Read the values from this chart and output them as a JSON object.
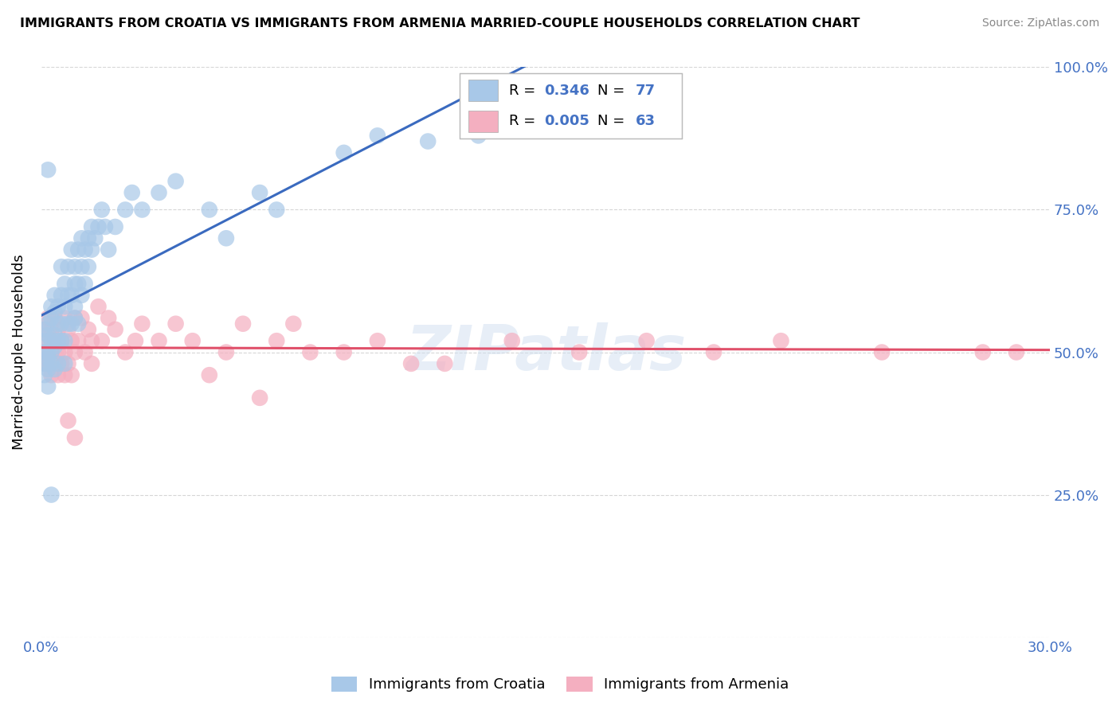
{
  "title": "IMMIGRANTS FROM CROATIA VS IMMIGRANTS FROM ARMENIA MARRIED-COUPLE HOUSEHOLDS CORRELATION CHART",
  "source": "Source: ZipAtlas.com",
  "ylabel": "Married-couple Households",
  "xlim": [
    0.0,
    0.3
  ],
  "ylim": [
    0.0,
    1.0
  ],
  "croatia_R": 0.346,
  "croatia_N": 77,
  "armenia_R": 0.005,
  "armenia_N": 63,
  "blue_scatter_color": "#a8c8e8",
  "pink_scatter_color": "#f4afc0",
  "blue_line_color": "#3a6abf",
  "pink_line_color": "#e0506a",
  "watermark": "ZIPatlas",
  "croatia_x": [
    0.001,
    0.001,
    0.001,
    0.001,
    0.001,
    0.002,
    0.002,
    0.002,
    0.002,
    0.002,
    0.002,
    0.003,
    0.003,
    0.003,
    0.003,
    0.003,
    0.004,
    0.004,
    0.004,
    0.004,
    0.004,
    0.005,
    0.005,
    0.005,
    0.005,
    0.006,
    0.006,
    0.006,
    0.006,
    0.007,
    0.007,
    0.007,
    0.007,
    0.008,
    0.008,
    0.008,
    0.009,
    0.009,
    0.009,
    0.01,
    0.01,
    0.01,
    0.01,
    0.011,
    0.011,
    0.011,
    0.012,
    0.012,
    0.012,
    0.013,
    0.013,
    0.014,
    0.014,
    0.015,
    0.015,
    0.016,
    0.017,
    0.018,
    0.019,
    0.02,
    0.022,
    0.025,
    0.027,
    0.03,
    0.035,
    0.04,
    0.05,
    0.055,
    0.065,
    0.07,
    0.09,
    0.1,
    0.115,
    0.13,
    0.15,
    0.002,
    0.003
  ],
  "croatia_y": [
    0.5,
    0.52,
    0.48,
    0.46,
    0.54,
    0.5,
    0.53,
    0.47,
    0.55,
    0.49,
    0.44,
    0.52,
    0.5,
    0.56,
    0.48,
    0.58,
    0.53,
    0.51,
    0.57,
    0.47,
    0.6,
    0.55,
    0.52,
    0.58,
    0.48,
    0.6,
    0.55,
    0.52,
    0.65,
    0.58,
    0.52,
    0.62,
    0.48,
    0.6,
    0.55,
    0.65,
    0.6,
    0.55,
    0.68,
    0.62,
    0.56,
    0.65,
    0.58,
    0.62,
    0.55,
    0.68,
    0.6,
    0.65,
    0.7,
    0.62,
    0.68,
    0.65,
    0.7,
    0.68,
    0.72,
    0.7,
    0.72,
    0.75,
    0.72,
    0.68,
    0.72,
    0.75,
    0.78,
    0.75,
    0.78,
    0.8,
    0.75,
    0.7,
    0.78,
    0.75,
    0.85,
    0.88,
    0.87,
    0.88,
    0.9,
    0.82,
    0.25
  ],
  "armenia_x": [
    0.001,
    0.001,
    0.001,
    0.002,
    0.002,
    0.002,
    0.003,
    0.003,
    0.003,
    0.004,
    0.004,
    0.004,
    0.005,
    0.005,
    0.005,
    0.006,
    0.006,
    0.007,
    0.007,
    0.007,
    0.008,
    0.008,
    0.009,
    0.009,
    0.01,
    0.01,
    0.011,
    0.012,
    0.013,
    0.014,
    0.015,
    0.015,
    0.017,
    0.018,
    0.02,
    0.022,
    0.025,
    0.028,
    0.03,
    0.035,
    0.04,
    0.045,
    0.05,
    0.055,
    0.06,
    0.065,
    0.07,
    0.075,
    0.08,
    0.09,
    0.1,
    0.11,
    0.12,
    0.14,
    0.16,
    0.18,
    0.2,
    0.22,
    0.25,
    0.28,
    0.29,
    0.008,
    0.01
  ],
  "armenia_y": [
    0.5,
    0.54,
    0.48,
    0.52,
    0.48,
    0.56,
    0.5,
    0.46,
    0.54,
    0.52,
    0.48,
    0.56,
    0.5,
    0.54,
    0.46,
    0.52,
    0.48,
    0.5,
    0.56,
    0.46,
    0.54,
    0.48,
    0.52,
    0.46,
    0.5,
    0.56,
    0.52,
    0.56,
    0.5,
    0.54,
    0.52,
    0.48,
    0.58,
    0.52,
    0.56,
    0.54,
    0.5,
    0.52,
    0.55,
    0.52,
    0.55,
    0.52,
    0.46,
    0.5,
    0.55,
    0.42,
    0.52,
    0.55,
    0.5,
    0.5,
    0.52,
    0.48,
    0.48,
    0.52,
    0.5,
    0.52,
    0.5,
    0.52,
    0.5,
    0.5,
    0.5,
    0.38,
    0.35
  ]
}
